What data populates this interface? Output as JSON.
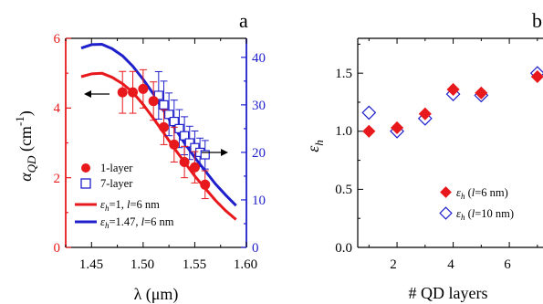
{
  "chart_data": [
    {
      "panel": "a",
      "type": "scatter",
      "panel_label": "a",
      "xlabel": "λ (μm)",
      "ylabel_left": "αQD (cm-1)",
      "ylabel_left_parts": {
        "alpha": "α",
        "sub": "QD",
        "open": " (cm",
        "exp": "-1",
        "close": ")"
      },
      "xlim": [
        1.425,
        1.6
      ],
      "ylim_left": [
        0,
        6
      ],
      "ylim_right": [
        0,
        44
      ],
      "x_ticks": [
        "1.45",
        "1.50",
        "1.55",
        "1.60"
      ],
      "y_left_ticks": [
        "0",
        "2",
        "4",
        "6"
      ],
      "y_right_ticks": [
        "0",
        "10",
        "20",
        "30",
        "40"
      ],
      "colors": {
        "red": "#e8191c",
        "blue": "#1f1fcc",
        "axis": "#000000"
      },
      "series": [
        {
          "name": "1-layer",
          "marker": "filled-circle",
          "color": "#e8191c",
          "axis": "left",
          "points": [
            {
              "x": 1.48,
              "y": 4.45,
              "err": 0.6
            },
            {
              "x": 1.49,
              "y": 4.45,
              "err": 0.6
            },
            {
              "x": 1.5,
              "y": 4.55,
              "err": 0.55
            },
            {
              "x": 1.51,
              "y": 4.2,
              "err": 0.55
            },
            {
              "x": 1.52,
              "y": 3.45,
              "err": 0.5
            },
            {
              "x": 1.53,
              "y": 2.95,
              "err": 0.5
            },
            {
              "x": 1.54,
              "y": 2.45,
              "err": 0.45
            },
            {
              "x": 1.55,
              "y": 2.3,
              "err": 0.45
            },
            {
              "x": 1.56,
              "y": 1.8,
              "err": 0.4
            }
          ]
        },
        {
          "name": "7-layer",
          "marker": "open-square",
          "color": "#1f1fcc",
          "axis": "right",
          "points": [
            {
              "x": 1.515,
              "y": 32.0,
              "err": 5.0
            },
            {
              "x": 1.52,
              "y": 30.0,
              "err": 5.0
            },
            {
              "x": 1.525,
              "y": 28.0,
              "err": 4.5
            },
            {
              "x": 1.53,
              "y": 26.5,
              "err": 4.5
            },
            {
              "x": 1.535,
              "y": 25.0,
              "err": 4.0
            },
            {
              "x": 1.54,
              "y": 23.5,
              "err": 4.0
            },
            {
              "x": 1.545,
              "y": 22.0,
              "err": 3.5
            },
            {
              "x": 1.55,
              "y": 21.0,
              "err": 3.5
            },
            {
              "x": 1.555,
              "y": 20.0,
              "err": 3.0
            },
            {
              "x": 1.56,
              "y": 19.5,
              "err": 3.0
            }
          ]
        },
        {
          "name": "εh=1, l=6 nm",
          "legend_parts": {
            "eps": "ε",
            "sub": "h",
            "val": "=1, ",
            "l": "l",
            "rest": "=6 nm"
          },
          "type": "line",
          "color": "#e8191c",
          "axis": "left",
          "x": [
            1.44,
            1.45,
            1.46,
            1.47,
            1.48,
            1.49,
            1.5,
            1.51,
            1.52,
            1.53,
            1.54,
            1.55,
            1.56,
            1.57,
            1.58,
            1.59
          ],
          "y": [
            4.9,
            4.98,
            5.0,
            4.88,
            4.7,
            4.45,
            4.1,
            3.7,
            3.28,
            2.85,
            2.45,
            2.05,
            1.7,
            1.35,
            1.05,
            0.8
          ]
        },
        {
          "name": "εh=1.47, l=6 nm",
          "legend_parts": {
            "eps": "ε",
            "sub": "h",
            "val": "=1.47, ",
            "l": "l",
            "rest": "=6 nm"
          },
          "type": "line",
          "color": "#1f1fcc",
          "axis": "left",
          "x": [
            1.44,
            1.45,
            1.46,
            1.47,
            1.48,
            1.49,
            1.5,
            1.51,
            1.52,
            1.53,
            1.54,
            1.55,
            1.56,
            1.57,
            1.58,
            1.59
          ],
          "y": [
            5.72,
            5.82,
            5.83,
            5.7,
            5.5,
            5.2,
            4.82,
            4.4,
            3.92,
            3.45,
            3.0,
            2.58,
            2.2,
            1.82,
            1.5,
            1.2
          ]
        }
      ],
      "annotations": [
        "arrow-left-to-left-axis",
        "arrow-right-to-right-axis"
      ]
    },
    {
      "panel": "b",
      "type": "scatter",
      "panel_label": "b",
      "xlabel": "# QD layers",
      "ylabel": "εh",
      "ylabel_parts": {
        "eps": "ε",
        "sub": "h"
      },
      "xlim": [
        0.6,
        7.2
      ],
      "ylim": [
        0,
        1.8
      ],
      "x_ticks": [
        "2",
        "4",
        "6"
      ],
      "y_ticks": [
        "0.0",
        "0.5",
        "1.0",
        "1.5"
      ],
      "series": [
        {
          "name": "εh (l=6 nm)",
          "legend_parts": {
            "eps": "ε",
            "sub": "h",
            "open": " (",
            "l": "l",
            "rest": "=6 nm)"
          },
          "marker": "filled-diamond",
          "color": "#e8191c",
          "x": [
            1,
            2,
            3,
            4,
            5,
            7
          ],
          "y": [
            1.0,
            1.03,
            1.15,
            1.36,
            1.33,
            1.47
          ]
        },
        {
          "name": "εh (l=10 nm)",
          "legend_parts": {
            "eps": "ε",
            "sub": "h",
            "open": " (",
            "l": "l",
            "rest": "=10 nm)"
          },
          "marker": "open-diamond",
          "color": "#1f1fcc",
          "x": [
            1,
            2,
            3,
            4,
            5,
            7
          ],
          "y": [
            1.16,
            1.0,
            1.11,
            1.32,
            1.31,
            1.5
          ]
        }
      ]
    }
  ]
}
